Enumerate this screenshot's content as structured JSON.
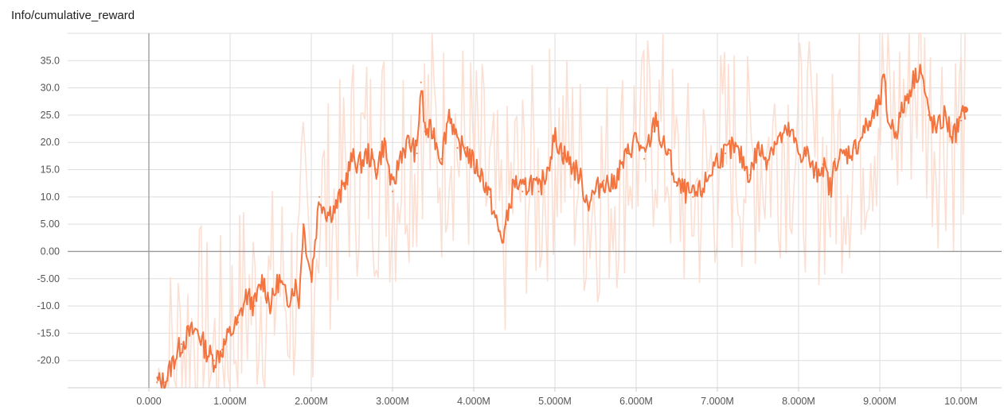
{
  "title": "Info/cumulative_reward",
  "chart_data": {
    "type": "line",
    "title": "Info/cumulative_reward",
    "xlabel": "",
    "ylabel": "",
    "xlim": [
      -1000000,
      10500000
    ],
    "ylim": [
      -25,
      40
    ],
    "x_ticks": [
      0,
      1000000,
      2000000,
      3000000,
      4000000,
      5000000,
      6000000,
      7000000,
      8000000,
      9000000,
      10000000
    ],
    "x_tick_labels": [
      "0.000",
      "1.000M",
      "2.000M",
      "3.000M",
      "4.000M",
      "5.000M",
      "6.000M",
      "7.000M",
      "8.000M",
      "9.000M",
      "10.00M"
    ],
    "y_ticks": [
      -20,
      -15,
      -10,
      -5,
      0,
      5,
      10,
      15,
      20,
      25,
      30,
      35
    ],
    "y_tick_labels": [
      "-20.0",
      "-15.0",
      "-10.0",
      "-5.00",
      "0.00",
      "5.00",
      "10.0",
      "15.0",
      "20.0",
      "25.0",
      "30.0",
      "35.0"
    ],
    "grid": true,
    "colors": {
      "smoothed": "#f4743f",
      "raw": "#fcd9cb",
      "axis": "#999999",
      "grid": "#dddddd"
    },
    "series": [
      {
        "x": [
          100000,
          200000,
          300000,
          400000,
          500000,
          600000,
          700000,
          800000,
          900000,
          1000000,
          1100000,
          1200000,
          1300000,
          1400000,
          1500000,
          1600000,
          1700000,
          1800000,
          1850000,
          1900000,
          2000000,
          2100000,
          2200000,
          2300000,
          2400000,
          2500000,
          2600000,
          2700000,
          2800000,
          2900000,
          3000000,
          3100000,
          3200000,
          3300000,
          3350000,
          3400000,
          3500000,
          3600000,
          3700000,
          3800000,
          3900000,
          4000000,
          4100000,
          4200000,
          4300000,
          4350000,
          4400000,
          4500000,
          4600000,
          4700000,
          4800000,
          4900000,
          5000000,
          5100000,
          5200000,
          5300000,
          5400000,
          5500000,
          5600000,
          5700000,
          5800000,
          5900000,
          6000000,
          6100000,
          6200000,
          6250000,
          6300000,
          6400000,
          6500000,
          6600000,
          6700000,
          6800000,
          6900000,
          7000000,
          7100000,
          7200000,
          7300000,
          7400000,
          7500000,
          7600000,
          7700000,
          7800000,
          7900000,
          8000000,
          8100000,
          8200000,
          8300000,
          8400000,
          8450000,
          8500000,
          8600000,
          8700000,
          8800000,
          8900000,
          9000000,
          9050000,
          9100000,
          9200000,
          9300000,
          9400000,
          9500000,
          9600000,
          9700000,
          9800000,
          9900000,
          10000000,
          10050000
        ],
        "values": [
          -24,
          -24,
          -20,
          -17,
          -15,
          -14.5,
          -18,
          -20,
          -18,
          -15,
          -13,
          -8,
          -10,
          -5,
          -10,
          -5,
          -9,
          -6,
          -9,
          5,
          -5,
          10,
          7,
          8,
          12,
          17,
          16,
          18,
          15,
          20,
          11,
          18,
          20,
          18,
          31,
          22,
          22,
          17,
          26,
          19,
          19,
          16,
          14,
          10,
          4,
          2,
          5,
          13,
          11,
          13,
          11,
          15,
          21,
          18,
          16,
          14,
          9,
          11,
          13,
          12,
          15,
          18,
          21,
          17,
          22,
          25,
          20,
          18,
          12,
          11,
          10,
          11,
          14,
          17,
          18,
          19,
          17,
          14,
          19,
          17,
          20,
          21,
          22,
          18,
          18,
          14,
          16,
          11,
          17,
          17,
          18,
          19,
          22,
          24,
          27,
          32,
          24,
          22,
          27,
          31,
          34,
          25,
          22,
          25,
          21,
          24,
          26
        ]
      }
    ]
  }
}
